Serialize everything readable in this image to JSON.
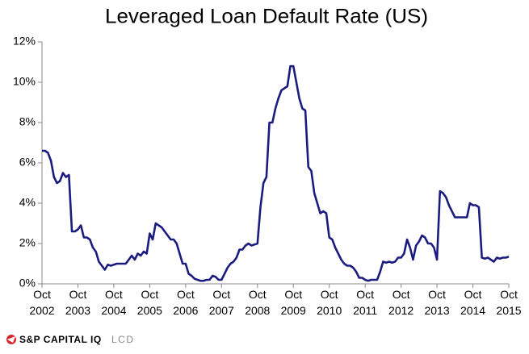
{
  "chart_data": {
    "type": "line",
    "title": "Leveraged Loan Default Rate (US)",
    "x": [
      "2002-10",
      "2002-11",
      "2002-12",
      "2003-01",
      "2003-02",
      "2003-03",
      "2003-04",
      "2003-05",
      "2003-06",
      "2003-07",
      "2003-08",
      "2003-09",
      "2003-10",
      "2003-11",
      "2003-12",
      "2004-01",
      "2004-02",
      "2004-03",
      "2004-04",
      "2004-05",
      "2004-06",
      "2004-07",
      "2004-08",
      "2004-09",
      "2004-10",
      "2004-11",
      "2004-12",
      "2005-01",
      "2005-02",
      "2005-03",
      "2005-04",
      "2005-05",
      "2005-06",
      "2005-07",
      "2005-08",
      "2005-09",
      "2005-10",
      "2005-11",
      "2005-12",
      "2006-01",
      "2006-02",
      "2006-03",
      "2006-04",
      "2006-05",
      "2006-06",
      "2006-07",
      "2006-08",
      "2006-09",
      "2006-10",
      "2006-11",
      "2006-12",
      "2007-01",
      "2007-02",
      "2007-03",
      "2007-04",
      "2007-05",
      "2007-06",
      "2007-07",
      "2007-08",
      "2007-09",
      "2007-10",
      "2007-11",
      "2007-12",
      "2008-01",
      "2008-02",
      "2008-03",
      "2008-04",
      "2008-05",
      "2008-06",
      "2008-07",
      "2008-08",
      "2008-09",
      "2008-10",
      "2008-11",
      "2008-12",
      "2009-01",
      "2009-02",
      "2009-03",
      "2009-04",
      "2009-05",
      "2009-06",
      "2009-07",
      "2009-08",
      "2009-09",
      "2009-10",
      "2009-11",
      "2009-12",
      "2010-01",
      "2010-02",
      "2010-03",
      "2010-04",
      "2010-05",
      "2010-06",
      "2010-07",
      "2010-08",
      "2010-09",
      "2010-10",
      "2010-11",
      "2010-12",
      "2011-01",
      "2011-02",
      "2011-03",
      "2011-04",
      "2011-05",
      "2011-06",
      "2011-07",
      "2011-08",
      "2011-09",
      "2011-10",
      "2011-11",
      "2011-12",
      "2012-01",
      "2012-02",
      "2012-03",
      "2012-04",
      "2012-05",
      "2012-06",
      "2012-07",
      "2012-08",
      "2012-09",
      "2012-10",
      "2012-11",
      "2012-12",
      "2013-01",
      "2013-02",
      "2013-03",
      "2013-04",
      "2013-05",
      "2013-06",
      "2013-07",
      "2013-08",
      "2013-09",
      "2013-10",
      "2013-11",
      "2013-12",
      "2014-01",
      "2014-02",
      "2014-03",
      "2014-04",
      "2014-05",
      "2014-06",
      "2014-07",
      "2014-08",
      "2014-09",
      "2014-10",
      "2014-11",
      "2014-12",
      "2015-01",
      "2015-02",
      "2015-03",
      "2015-04",
      "2015-05",
      "2015-06",
      "2015-07",
      "2015-08",
      "2015-09",
      "2015-10"
    ],
    "series": [
      {
        "color": "#1c1c80",
        "values": [
          6.6,
          6.6,
          6.5,
          6.1,
          5.3,
          5.0,
          5.1,
          5.5,
          5.3,
          5.4,
          2.6,
          2.6,
          2.7,
          2.9,
          2.3,
          2.3,
          2.2,
          1.8,
          1.6,
          1.1,
          0.9,
          0.7,
          0.95,
          0.9,
          0.95,
          1.0,
          1.0,
          1.0,
          1.0,
          1.2,
          1.4,
          1.2,
          1.5,
          1.4,
          1.6,
          1.5,
          2.5,
          2.2,
          3.0,
          2.9,
          2.8,
          2.6,
          2.4,
          2.2,
          2.2,
          2.0,
          1.5,
          1.0,
          1.0,
          0.5,
          0.4,
          0.25,
          0.2,
          0.15,
          0.15,
          0.2,
          0.2,
          0.4,
          0.35,
          0.2,
          0.2,
          0.5,
          0.8,
          1.0,
          1.1,
          1.3,
          1.7,
          1.7,
          1.9,
          2.0,
          1.9,
          1.95,
          2.0,
          3.8,
          5.0,
          5.3,
          8.0,
          8.0,
          8.7,
          9.2,
          9.6,
          9.7,
          9.8,
          10.8,
          10.8,
          10.0,
          9.2,
          8.7,
          8.6,
          5.8,
          5.6,
          4.5,
          4.0,
          3.5,
          3.6,
          3.5,
          2.3,
          2.2,
          1.8,
          1.5,
          1.2,
          1.0,
          0.9,
          0.9,
          0.8,
          0.6,
          0.3,
          0.3,
          0.2,
          0.15,
          0.2,
          0.2,
          0.2,
          0.6,
          1.1,
          1.05,
          1.1,
          1.05,
          1.1,
          1.3,
          1.3,
          1.5,
          2.2,
          1.8,
          1.2,
          1.9,
          2.1,
          2.4,
          2.3,
          2.0,
          2.0,
          1.8,
          1.2,
          4.6,
          4.5,
          4.3,
          3.9,
          3.6,
          3.3,
          3.3,
          3.3,
          3.3,
          3.3,
          4.0,
          3.9,
          3.9,
          3.8,
          1.3,
          1.25,
          1.3,
          1.2,
          1.1,
          1.3,
          1.25,
          1.3,
          1.3,
          1.35
        ]
      }
    ],
    "xlim": [
      "2002-10",
      "2015-10"
    ],
    "xticks": [
      {
        "value": "2002-10",
        "label": "Oct 2002"
      },
      {
        "value": "2003-10",
        "label": "Oct 2003"
      },
      {
        "value": "2004-10",
        "label": "Oct 2004"
      },
      {
        "value": "2005-10",
        "label": "Oct 2005"
      },
      {
        "value": "2006-10",
        "label": "Oct 2006"
      },
      {
        "value": "2007-10",
        "label": "Oct 2007"
      },
      {
        "value": "2008-10",
        "label": "Oct 2008"
      },
      {
        "value": "2009-10",
        "label": "Oct 2009"
      },
      {
        "value": "2010-10",
        "label": "Oct 2010"
      },
      {
        "value": "2011-10",
        "label": "Oct 2011"
      },
      {
        "value": "2012-10",
        "label": "Oct 2012"
      },
      {
        "value": "2013-10",
        "label": "Oct 2013"
      },
      {
        "value": "2014-10",
        "label": "Oct 2014"
      },
      {
        "value": "2015-10",
        "label": "Oct 2015"
      }
    ],
    "ylim": [
      0,
      12
    ],
    "yticks": [
      {
        "value": 0,
        "label": "0%"
      },
      {
        "value": 2,
        "label": "2%"
      },
      {
        "value": 4,
        "label": "4%"
      },
      {
        "value": 6,
        "label": "6%"
      },
      {
        "value": 8,
        "label": "8%"
      },
      {
        "value": 10,
        "label": "10%"
      },
      {
        "value": 12,
        "label": "12%"
      }
    ],
    "grid": false,
    "source": {
      "brand": "S&P CAPITAL IQ",
      "product": "LCD"
    }
  }
}
